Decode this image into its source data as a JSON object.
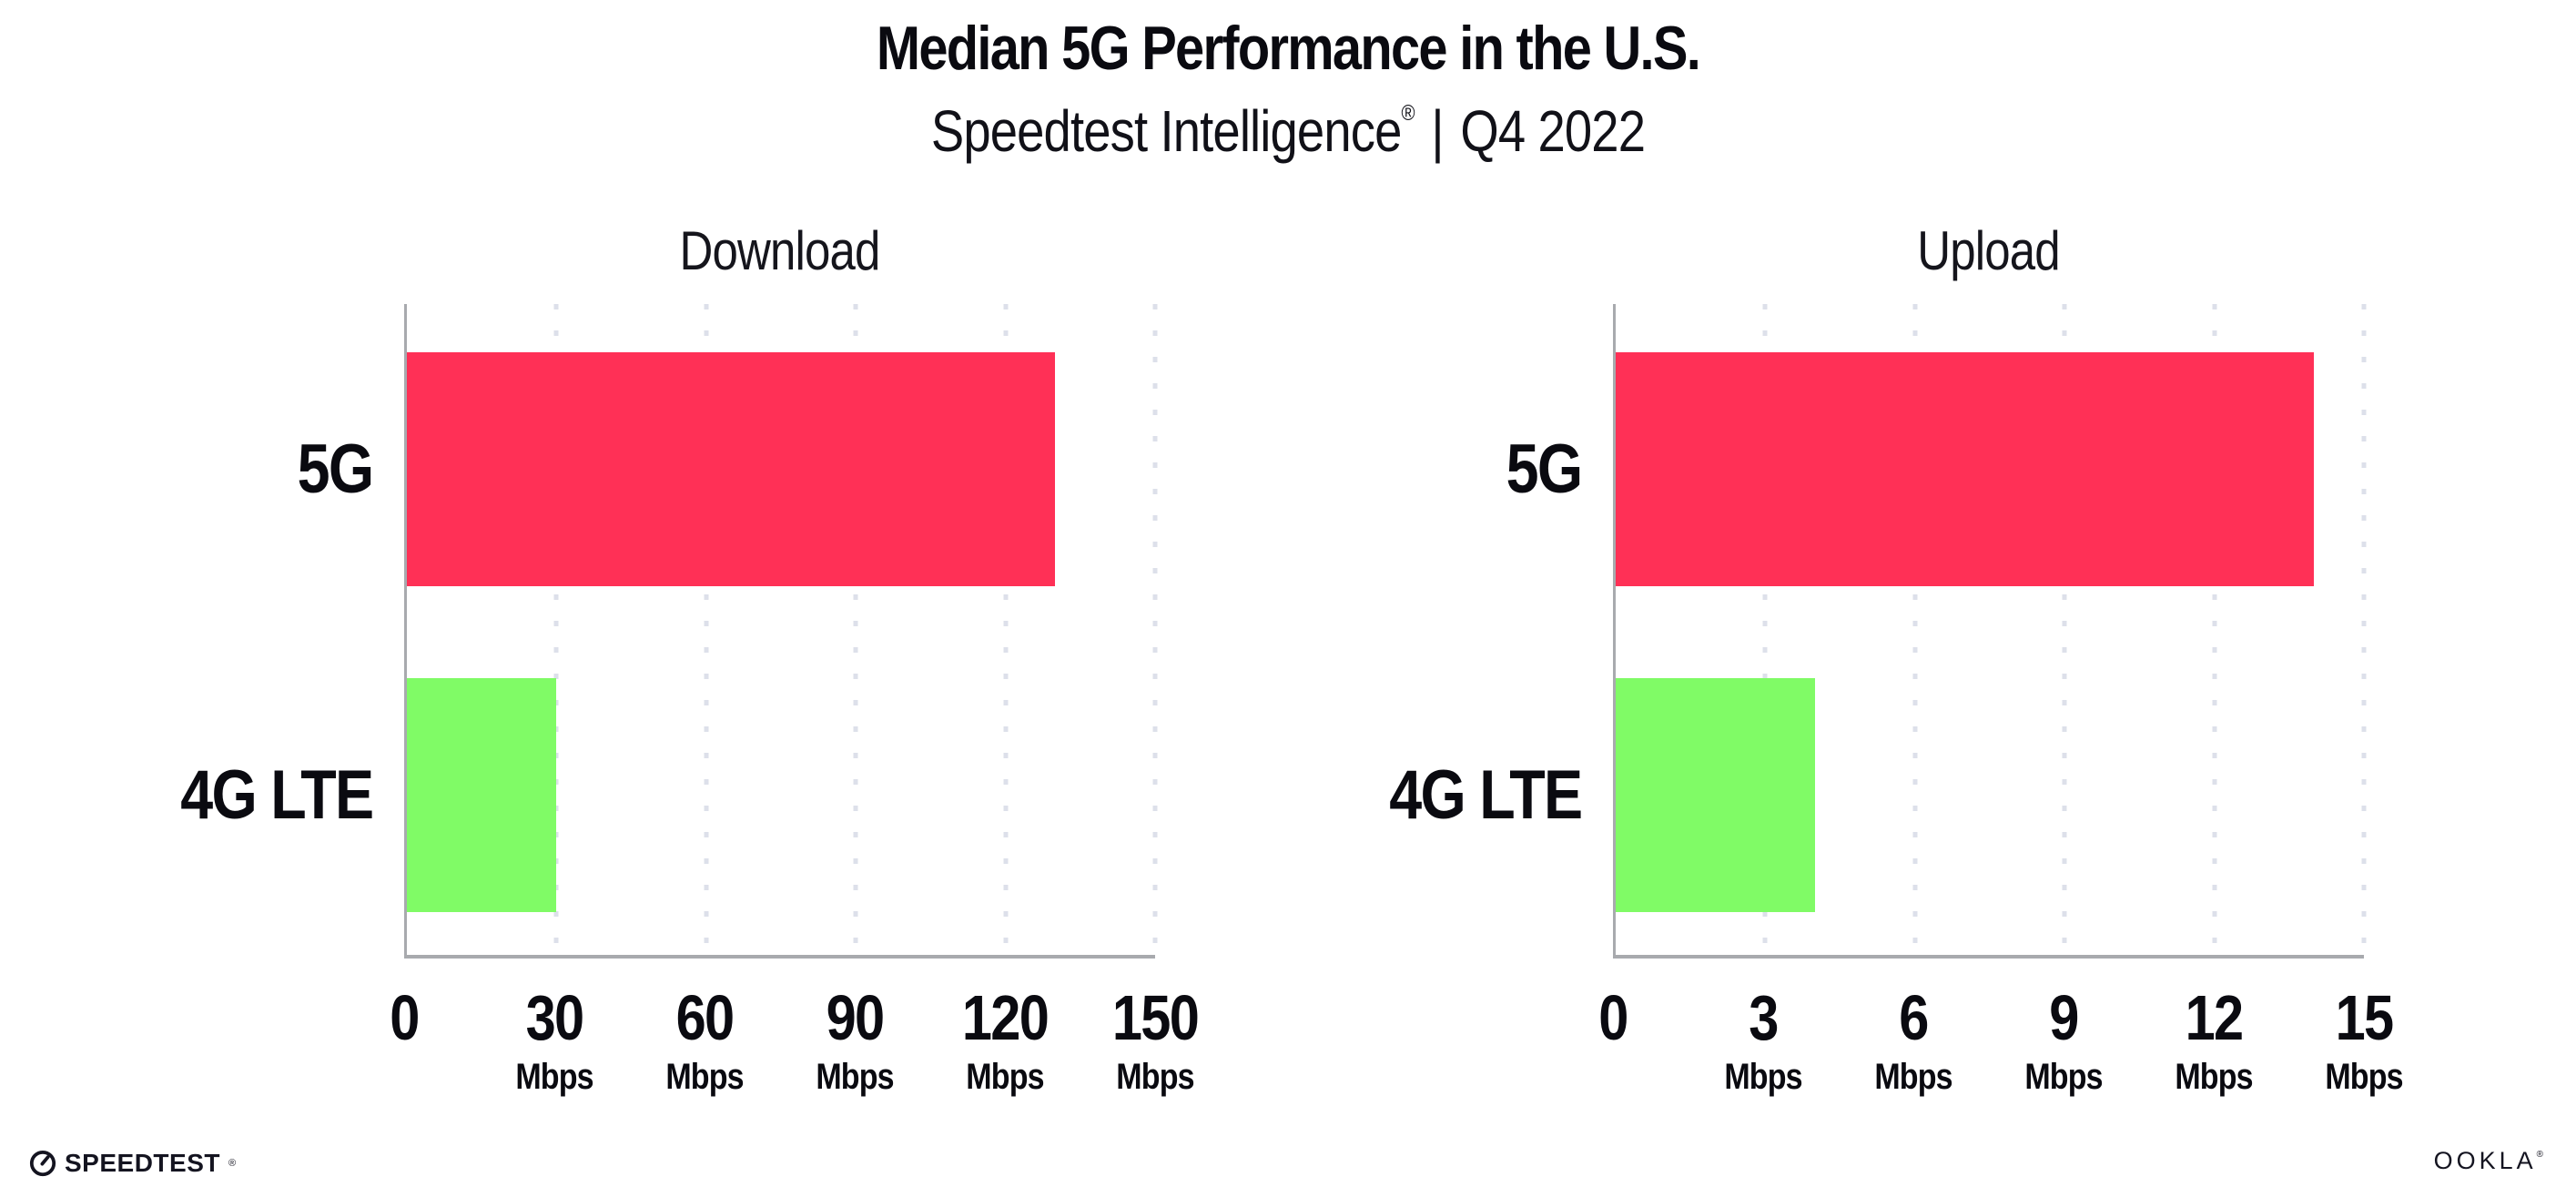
{
  "header": {
    "title": "Median 5G Performance in the U.S.",
    "subtitle": {
      "brand": "Speedtest Intelligence",
      "registered_mark": "®",
      "separator": "|",
      "period": "Q4 2022"
    }
  },
  "chart_data": [
    {
      "type": "bar",
      "orientation": "horizontal",
      "title": "Download",
      "categories": [
        "5G",
        "4G LTE"
      ],
      "values": [
        130,
        30
      ],
      "value_unit": "Mbps",
      "xlim": [
        0,
        150
      ],
      "xticks": [
        0,
        30,
        60,
        90,
        120,
        150
      ],
      "tick_unit_label": "Mbps",
      "grid": "vertical-dotted",
      "bar_colors": [
        "#FF3056",
        "#80FB66"
      ]
    },
    {
      "type": "bar",
      "orientation": "horizontal",
      "title": "Upload",
      "categories": [
        "5G",
        "4G LTE"
      ],
      "values": [
        14,
        4
      ],
      "value_unit": "Mbps",
      "xlim": [
        0,
        15
      ],
      "xticks": [
        0,
        3,
        6,
        9,
        12,
        15
      ],
      "tick_unit_label": "Mbps",
      "grid": "vertical-dotted",
      "bar_colors": [
        "#FF3056",
        "#80FB66"
      ]
    }
  ],
  "footer": {
    "speedtest_wordmark": "SPEEDTEST",
    "speedtest_mark": "®",
    "ookla_wordmark": "OOKLA",
    "ookla_mark": "®"
  },
  "colors": {
    "bar_5g": "#FF3056",
    "bar_4g_lte": "#80FB66",
    "axis": "#A8AAAE",
    "gridline": "#DDE0EA",
    "text": "#0A0A10",
    "background": "#FFFFFF"
  }
}
